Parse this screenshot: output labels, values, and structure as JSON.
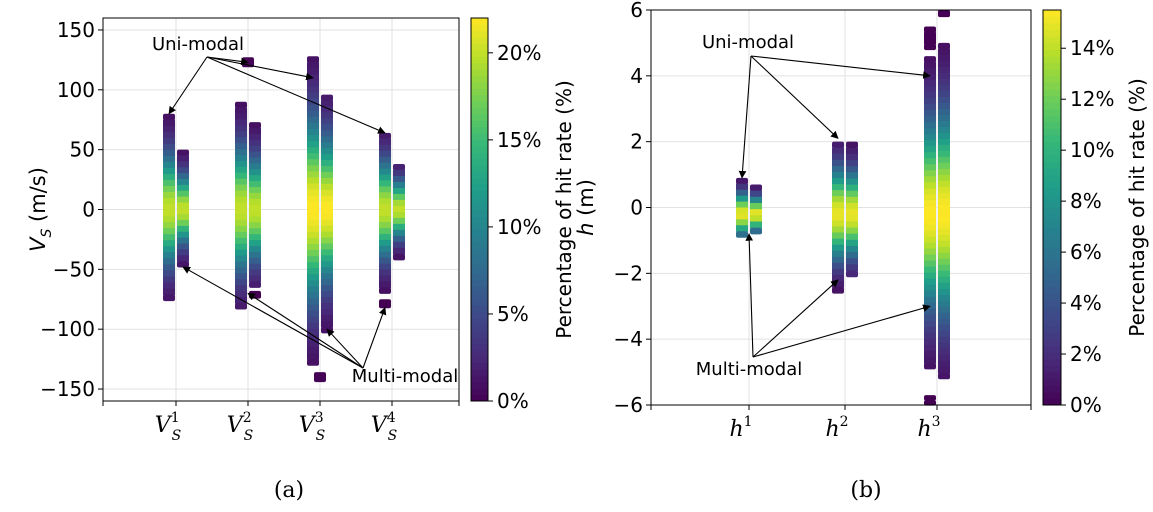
{
  "chart_data": [
    {
      "type": "heatmap",
      "panel_caption": "(a)",
      "ylabel_var": "V",
      "ylabel_sub": "S",
      "ylabel_unit": " (m/s)",
      "ylim": [
        -160,
        160
      ],
      "yticks": [
        -150,
        -100,
        -50,
        0,
        50,
        100,
        150
      ],
      "categories": [
        {
          "base": "V",
          "sub": "S",
          "sup": "1"
        },
        {
          "base": "V",
          "sub": "S",
          "sup": "2"
        },
        {
          "base": "V",
          "sub": "S",
          "sup": "3"
        },
        {
          "base": "V",
          "sub": "S",
          "sup": "4"
        }
      ],
      "columns": [
        {
          "category": 0,
          "offset": -1,
          "range": [
            -76,
            80
          ],
          "peak": 0,
          "peak_pct": 20
        },
        {
          "category": 0,
          "offset": 1,
          "range": [
            -48,
            50
          ],
          "peak": 0,
          "peak_pct": 20
        },
        {
          "category": 1,
          "offset": -1,
          "range": [
            -83,
            90
          ],
          "peak": 0,
          "peak_pct": 20
        },
        {
          "category": 1,
          "offset": 1,
          "range": [
            -65,
            73
          ],
          "peak": 0,
          "peak_pct": 20
        },
        {
          "category": 1,
          "offset": 1,
          "range": [
            -74,
            -68
          ],
          "peak": 0,
          "peak_pct": 0.4
        },
        {
          "category": 2,
          "offset": -1,
          "range": [
            -130,
            128
          ],
          "peak": 0,
          "peak_pct": 22
        },
        {
          "category": 2,
          "offset": 1,
          "range": [
            -103,
            96
          ],
          "peak": 0,
          "peak_pct": 22
        },
        {
          "category": 3,
          "offset": -1,
          "range": [
            -70,
            64
          ],
          "peak": 0,
          "peak_pct": 20
        },
        {
          "category": 3,
          "offset": -1,
          "range": [
            -82,
            -75
          ],
          "peak": 0,
          "peak_pct": 0.4
        },
        {
          "category": 3,
          "offset": 1,
          "range": [
            -42,
            38
          ],
          "peak": 0,
          "peak_pct": 20
        }
      ],
      "isolated_points": [
        {
          "category": 1,
          "offset": 0,
          "y": 123
        },
        {
          "category": 2,
          "offset": 0,
          "y": -140
        }
      ],
      "colorbar": {
        "label": "Percentage of hit rate (%)",
        "min": 0,
        "max": 22,
        "ticks": [
          0,
          5,
          10,
          15,
          20
        ],
        "tick_labels": [
          "0%",
          "5%",
          "10%",
          "15%",
          "20%"
        ]
      },
      "annotations": {
        "uni_label": "Uni-modal",
        "multi_label": "Multi-modal",
        "uni_targets": [
          {
            "category": 0,
            "offset": -1,
            "y": 80
          },
          {
            "category": 1,
            "offset": 0,
            "y": 123
          },
          {
            "category": 2,
            "offset": -1,
            "y": 110
          },
          {
            "category": 3,
            "offset": -1,
            "y": 64
          }
        ],
        "multi_targets": [
          {
            "category": 0,
            "offset": 1,
            "y": -48
          },
          {
            "category": 1,
            "offset": 0,
            "y": -70
          },
          {
            "category": 2,
            "offset": 1,
            "y": -100
          },
          {
            "category": 3,
            "offset": -1,
            "y": -82
          }
        ]
      }
    },
    {
      "type": "heatmap",
      "panel_caption": "(b)",
      "ylabel_var": "h",
      "ylabel_sub": "",
      "ylabel_unit": " (m)",
      "ylim": [
        -6,
        6
      ],
      "yticks": [
        -6,
        -4,
        -2,
        0,
        2,
        4,
        6
      ],
      "categories": [
        {
          "base": "h",
          "sub": "",
          "sup": "1"
        },
        {
          "base": "h",
          "sub": "",
          "sup": "2"
        },
        {
          "base": "h",
          "sub": "",
          "sup": "3"
        }
      ],
      "columns": [
        {
          "category": 0,
          "offset": -1,
          "range": [
            -0.9,
            0.9
          ],
          "peak": -0.2,
          "peak_pct": 15
        },
        {
          "category": 0,
          "offset": 1,
          "range": [
            -0.8,
            0.7
          ],
          "peak": -0.2,
          "peak_pct": 15
        },
        {
          "category": 1,
          "offset": -1,
          "range": [
            -2.6,
            2.0
          ],
          "peak": -0.2,
          "peak_pct": 15
        },
        {
          "category": 1,
          "offset": 1,
          "range": [
            -2.1,
            2.0
          ],
          "peak": -0.2,
          "peak_pct": 15
        },
        {
          "category": 2,
          "offset": -1,
          "range": [
            -4.9,
            4.6
          ],
          "peak": -0.2,
          "peak_pct": 15.5
        },
        {
          "category": 2,
          "offset": -1,
          "range": [
            4.8,
            5.5
          ],
          "peak": -0.2,
          "peak_pct": 0.3
        },
        {
          "category": 2,
          "offset": -1,
          "range": [
            -6.0,
            -5.7
          ],
          "peak": -0.2,
          "peak_pct": 0.3
        },
        {
          "category": 2,
          "offset": 1,
          "range": [
            -5.2,
            5.0
          ],
          "peak": -0.2,
          "peak_pct": 15.5
        },
        {
          "category": 2,
          "offset": 1,
          "range": [
            5.8,
            6.0
          ],
          "peak": -0.2,
          "peak_pct": 0.3
        }
      ],
      "isolated_points": [],
      "colorbar": {
        "label": "Percentage of hit rate (%)",
        "min": 0,
        "max": 15.5,
        "ticks": [
          0,
          2,
          4,
          6,
          8,
          10,
          12,
          14
        ],
        "tick_labels": [
          "0%",
          "2%",
          "4%",
          "6%",
          "8%",
          "10%",
          "12%",
          "14%"
        ]
      },
      "annotations": {
        "uni_label": "Uni-modal",
        "multi_label": "Multi-modal",
        "uni_targets": [
          {
            "category": 0,
            "offset": -1,
            "y": 0.9
          },
          {
            "category": 1,
            "offset": -1,
            "y": 2.1
          },
          {
            "category": 2,
            "offset": -1,
            "y": 4.0
          }
        ],
        "multi_targets": [
          {
            "category": 0,
            "offset": 0,
            "y": -0.8
          },
          {
            "category": 1,
            "offset": -1,
            "y": -2.2
          },
          {
            "category": 2,
            "offset": -1,
            "y": -3.0
          }
        ]
      }
    }
  ]
}
